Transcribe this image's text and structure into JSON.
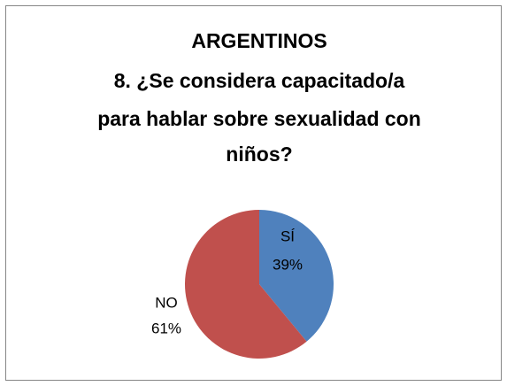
{
  "chart_data": {
    "type": "pie",
    "title": [
      "ARGENTINOS",
      "8. ¿Se considera capacitado/a",
      "para hablar sobre sexualidad con",
      "niños?"
    ],
    "categories": [
      "SÍ",
      "NO"
    ],
    "values": [
      39,
      61
    ],
    "value_labels": [
      "39%",
      "61%"
    ],
    "colors": [
      "#4f81bd",
      "#c0504d"
    ]
  }
}
